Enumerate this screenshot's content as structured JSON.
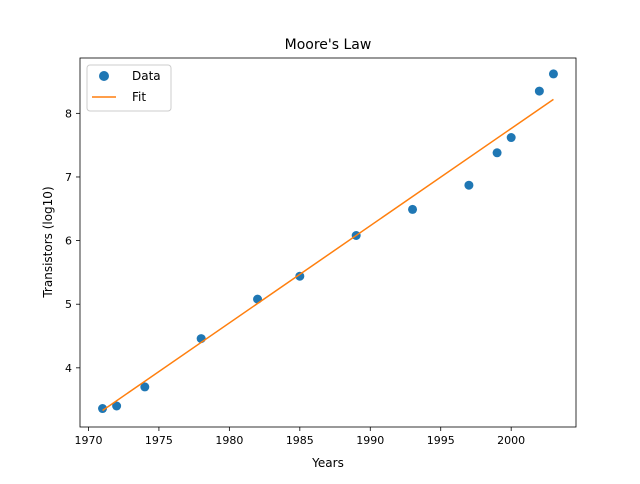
{
  "chart_data": {
    "type": "scatter",
    "title": "Moore's Law",
    "xlabel": "Years",
    "ylabel": "Transistors (log10)",
    "xlim": [
      1969.4,
      2004.6
    ],
    "ylim": [
      3.07,
      8.87
    ],
    "xticks": [
      1970,
      1975,
      1980,
      1985,
      1990,
      1995,
      2000
    ],
    "yticks": [
      4,
      5,
      6,
      7,
      8
    ],
    "grid": false,
    "legend_position": "upper-left",
    "series": [
      {
        "name": "Data",
        "kind": "points",
        "color": "#1f77b4",
        "x": [
          1971,
          1972,
          1974,
          1978,
          1982,
          1985,
          1989,
          1993,
          1997,
          1999,
          2000,
          2002,
          2003
        ],
        "y": [
          3.36,
          3.4,
          3.7,
          4.46,
          5.08,
          5.44,
          6.08,
          6.49,
          6.87,
          7.38,
          7.62,
          8.35,
          8.62
        ]
      },
      {
        "name": "Fit",
        "kind": "line",
        "color": "#ff7f0e",
        "x": [
          1971,
          2003
        ],
        "y": [
          3.33,
          8.22
        ]
      }
    ]
  }
}
